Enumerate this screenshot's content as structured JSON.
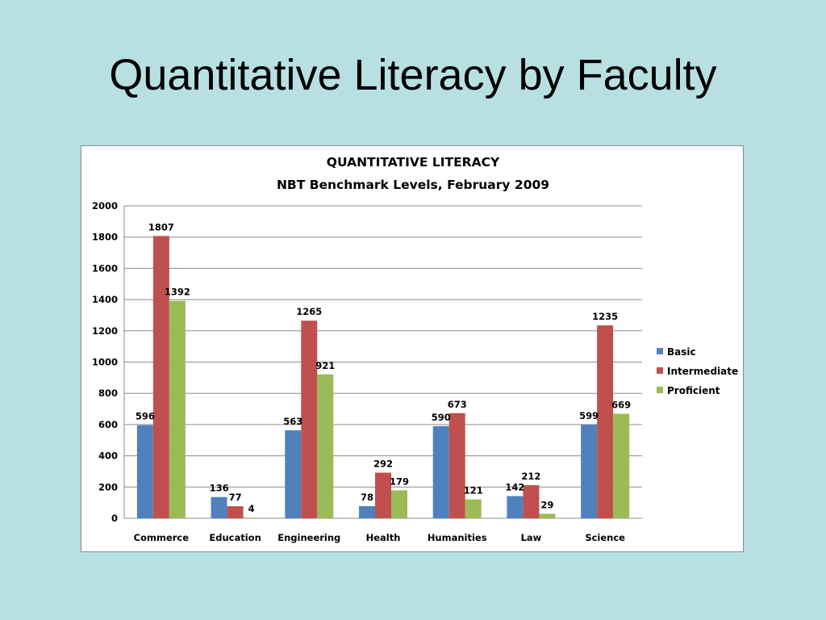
{
  "slide": {
    "title": "Quantitative Literacy by Faculty"
  },
  "colors": {
    "background": "#b8e0e3",
    "basic": "#4f81bd",
    "intermediate": "#c0504d",
    "proficient": "#9bbb59",
    "gridline": "#8c8c8c"
  },
  "chart_data": {
    "type": "bar",
    "title": "QUANTITATIVE LITERACY",
    "subtitle": "NBT Benchmark Levels, February 2009",
    "xlabel": "",
    "ylabel": "",
    "ylim": [
      0,
      2000
    ],
    "yticks": [
      0,
      200,
      400,
      600,
      800,
      1000,
      1200,
      1400,
      1600,
      1800,
      2000
    ],
    "grid": true,
    "legend_position": "right",
    "categories": [
      "Commerce",
      "Education",
      "Engineering",
      "Health",
      "Humanities",
      "Law",
      "Science"
    ],
    "series": [
      {
        "name": "Basic",
        "color": "#4f81bd",
        "values": [
          596,
          136,
          563,
          78,
          590,
          142,
          599
        ]
      },
      {
        "name": "Intermediate",
        "color": "#c0504d",
        "values": [
          1807,
          77,
          1265,
          292,
          673,
          212,
          1235
        ]
      },
      {
        "name": "Proficient",
        "color": "#9bbb59",
        "values": [
          1392,
          4,
          921,
          179,
          121,
          29,
          669
        ]
      }
    ]
  }
}
